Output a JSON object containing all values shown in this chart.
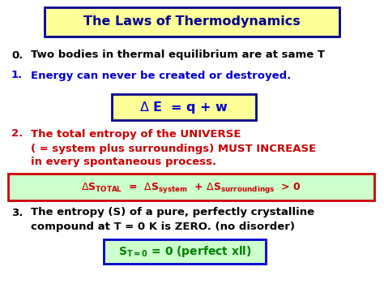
{
  "bg_color": "#ffffff",
  "title": "The Laws of Thermodynamics",
  "title_color": "#00008B",
  "title_bg": "#ffff99",
  "title_border": "#00008B",
  "law0_num": "0.",
  "law0_text": "Two bodies in thermal equilibrium are at same T",
  "law0_color": "#000000",
  "law1_num": "1.",
  "law1_text": "Energy can never be created or destroyed.",
  "law1_color": "#0000cc",
  "law1_formula_bg": "#ffff99",
  "law1_formula_border": "#00008B",
  "law2_num": "2.",
  "law2_text_line1": "The total entropy of the UNIVERSE",
  "law2_text_line2": "( = system plus surroundings) MUST INCREASE",
  "law2_text_line3": "in every spontaneous process.",
  "law2_color": "#cc0000",
  "law2_formula_bg": "#ccffcc",
  "law2_formula_border": "#cc0000",
  "law3_num": "3.",
  "law3_text_line1": "The entropy (S) of a pure, perfectly crystalline",
  "law3_text_line2": "compound at T = 0 K is ZERO. (no disorder)",
  "law3_color": "#000000",
  "law3_formula_bg": "#ccffcc",
  "law3_formula_border": "#0000cc",
  "law3_formula_color": "#008000"
}
